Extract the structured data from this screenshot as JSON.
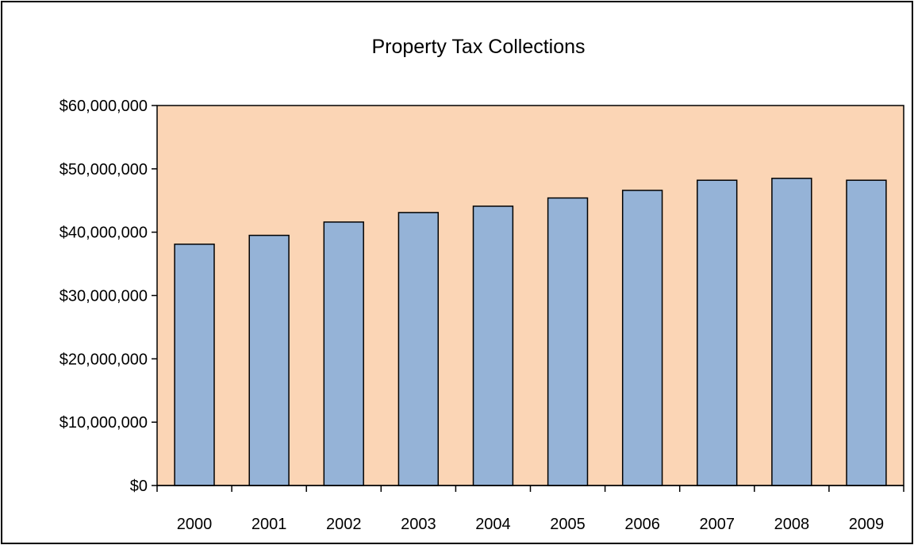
{
  "chart_data": {
    "type": "bar",
    "title": "Property Tax Collections",
    "xlabel": "",
    "ylabel": "",
    "categories": [
      "2000",
      "2001",
      "2002",
      "2003",
      "2004",
      "2005",
      "2006",
      "2007",
      "2008",
      "2009"
    ],
    "values": [
      38100000,
      39500000,
      41600000,
      43100000,
      44100000,
      45400000,
      46600000,
      48200000,
      48500000,
      48200000
    ],
    "ylim": [
      0,
      60000000
    ],
    "yticks": [
      0,
      10000000,
      20000000,
      30000000,
      40000000,
      50000000,
      60000000
    ],
    "ytick_labels": [
      "$0",
      "$10,000,000",
      "$20,000,000",
      "$30,000,000",
      "$40,000,000",
      "$50,000,000",
      "$60,000,000"
    ],
    "grid": false,
    "legend": "none",
    "colors": {
      "plot_background": "#FBD5B5",
      "bar_fill": "#95B3D7",
      "bar_stroke": "#000000",
      "axis": "#000000"
    }
  }
}
